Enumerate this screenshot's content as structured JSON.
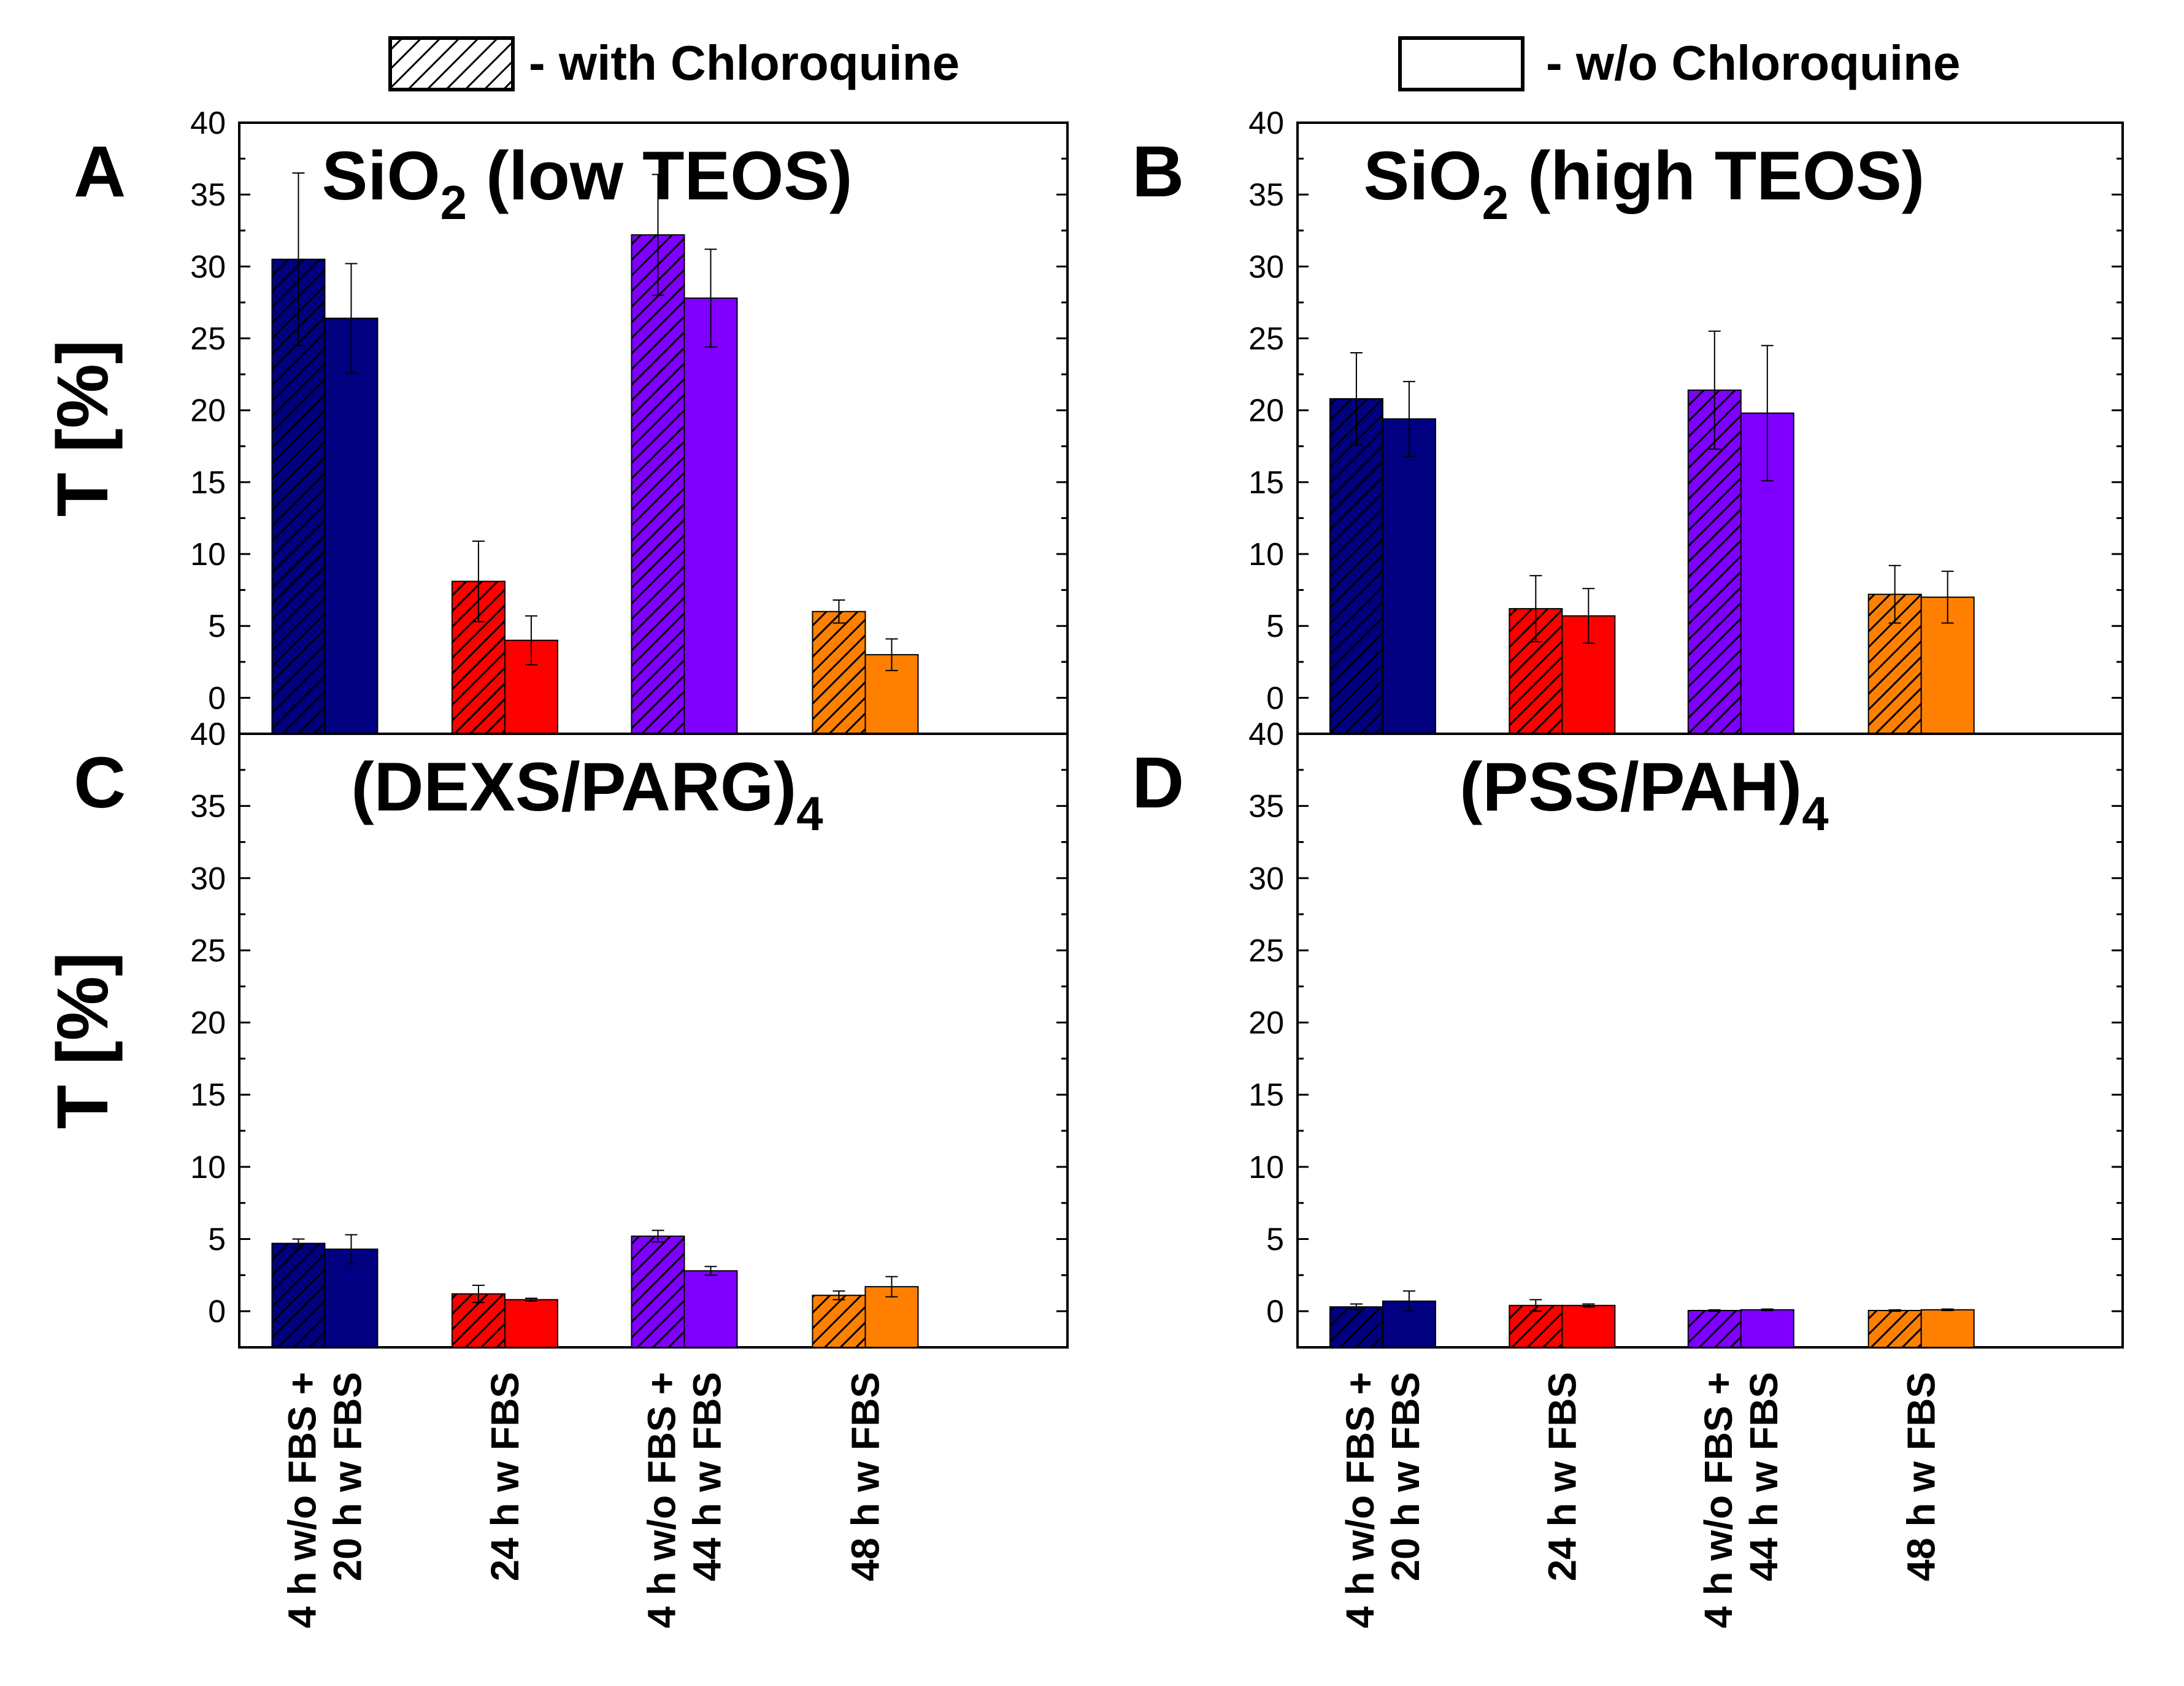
{
  "legend": {
    "with_label": "- with Chloroquine",
    "without_label": "- w/o Chloroquine"
  },
  "colors": [
    "#000080",
    "#ff0000",
    "#8000ff",
    "#ff8000"
  ],
  "chart_data": [
    {
      "type": "bar",
      "panel_label": "A",
      "title": "SiO",
      "title_sub": "2",
      "title_rest": " (low TEOS)",
      "ylabel": "T [%]",
      "ylim": [
        -2.5,
        40
      ],
      "yticks": [
        "0",
        "5",
        "10",
        "15",
        "20",
        "25",
        "30",
        "35",
        "40"
      ],
      "categories": [
        "4 h w/o FBS + 20 h w FBS",
        "24 h w FBS",
        "4 h w/o FBS + 44 h w FBS",
        "48 h w FBS"
      ],
      "series": [
        {
          "name": "with Chloroquine",
          "values": [
            30.5,
            8.1,
            32.2,
            6.0
          ],
          "errors": [
            6.0,
            2.8,
            4.2,
            0.8
          ]
        },
        {
          "name": "w/o Chloroquine",
          "values": [
            26.4,
            4.0,
            27.8,
            3.0
          ],
          "errors": [
            3.8,
            1.7,
            3.4,
            1.1
          ]
        }
      ]
    },
    {
      "type": "bar",
      "panel_label": "B",
      "title": "SiO",
      "title_sub": "2",
      "title_rest": " (high TEOS)",
      "ylabel": "T [%]",
      "ylim": [
        -2.5,
        40
      ],
      "yticks": [
        "0",
        "5",
        "10",
        "15",
        "20",
        "25",
        "30",
        "35",
        "40"
      ],
      "categories": [
        "4 h w/o FBS + 20 h w FBS",
        "24 h w FBS",
        "4 h w/o FBS + 44 h w FBS",
        "48 h w FBS"
      ],
      "series": [
        {
          "name": "with Chloroquine",
          "values": [
            20.8,
            6.2,
            21.4,
            7.2
          ],
          "errors": [
            3.2,
            2.3,
            4.1,
            2.0
          ]
        },
        {
          "name": "w/o Chloroquine",
          "values": [
            19.4,
            5.7,
            19.8,
            7.0
          ],
          "errors": [
            2.6,
            1.9,
            4.7,
            1.8
          ]
        }
      ]
    },
    {
      "type": "bar",
      "panel_label": "C",
      "title": "(DEXS/PARG)",
      "title_sub": "4",
      "title_rest": "",
      "ylabel": "T [%]",
      "ylim": [
        -2.5,
        40
      ],
      "yticks": [
        "0",
        "5",
        "10",
        "15",
        "20",
        "25",
        "30",
        "35",
        "40"
      ],
      "categories": [
        "4 h w/o FBS + 20 h w FBS",
        "24 h w FBS",
        "4 h w/o FBS + 44 h w FBS",
        "48 h w FBS"
      ],
      "series": [
        {
          "name": "with Chloroquine",
          "values": [
            4.7,
            1.2,
            5.2,
            1.1
          ],
          "errors": [
            0.3,
            0.6,
            0.4,
            0.3
          ]
        },
        {
          "name": "w/o Chloroquine",
          "values": [
            4.3,
            0.8,
            2.8,
            1.7
          ],
          "errors": [
            1.0,
            0.1,
            0.3,
            0.7
          ]
        }
      ]
    },
    {
      "type": "bar",
      "panel_label": "D",
      "title": "(PSS/PAH)",
      "title_sub": "4",
      "title_rest": "",
      "ylabel": "T [%]",
      "ylim": [
        -2.5,
        40
      ],
      "yticks": [
        "0",
        "5",
        "10",
        "15",
        "20",
        "25",
        "30",
        "35",
        "40"
      ],
      "categories": [
        "4 h w/o FBS + 20 h w FBS",
        "24 h w FBS",
        "4 h w/o FBS + 44 h w FBS",
        "48 h w FBS"
      ],
      "series": [
        {
          "name": "with Chloroquine",
          "values": [
            0.3,
            0.4,
            0.05,
            0.05
          ],
          "errors": [
            0.2,
            0.4,
            0.05,
            0.05
          ]
        },
        {
          "name": "w/o Chloroquine",
          "values": [
            0.7,
            0.4,
            0.1,
            0.1
          ],
          "errors": [
            0.7,
            0.1,
            0.05,
            0.05
          ]
        }
      ]
    }
  ],
  "x_category_lines": [
    [
      "4 h w/o FBS +",
      "20 h w FBS"
    ],
    [
      "24 h w FBS"
    ],
    [
      "4 h w/o FBS +",
      "44 h w FBS"
    ],
    [
      "48 h w FBS"
    ]
  ]
}
